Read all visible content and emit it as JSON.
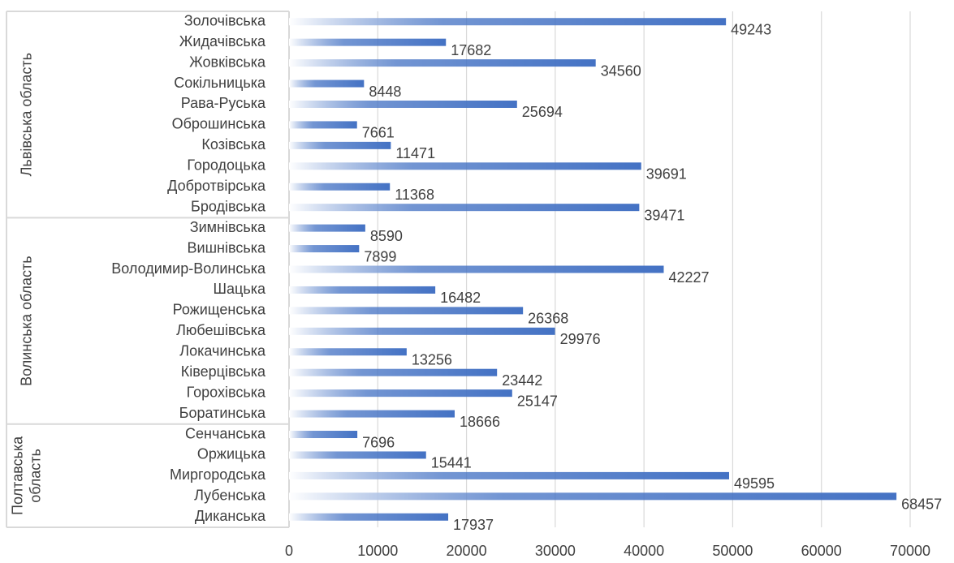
{
  "chart_data": {
    "type": "bar",
    "orientation": "horizontal",
    "xlim": [
      0,
      70000
    ],
    "xticks": [
      0,
      10000,
      20000,
      30000,
      40000,
      50000,
      60000,
      70000
    ],
    "grid": true,
    "bar_color": "#4472C4",
    "bar_style": "gradient-from-left",
    "groups": [
      {
        "label": "Львівська область",
        "label_lines": [
          "Львівська область"
        ],
        "items": [
          {
            "category": "Золочівська",
            "value": 49243
          },
          {
            "category": "Жидачівська",
            "value": 17682
          },
          {
            "category": "Жовківська",
            "value": 34560
          },
          {
            "category": "Сокільницька",
            "value": 8448
          },
          {
            "category": "Рава-Руська",
            "value": 25694
          },
          {
            "category": "Оброшинська",
            "value": 7661
          },
          {
            "category": "Козівська",
            "value": 11471
          },
          {
            "category": "Городоцька",
            "value": 39691
          },
          {
            "category": "Добротвірська",
            "value": 11368
          },
          {
            "category": "Бродівська",
            "value": 39471
          }
        ]
      },
      {
        "label": "Волинська область",
        "label_lines": [
          "Волинська область"
        ],
        "items": [
          {
            "category": "Зимнівська",
            "value": 8590
          },
          {
            "category": "Вишнівська",
            "value": 7899
          },
          {
            "category": "Володимир-Волинська",
            "value": 42227
          },
          {
            "category": "Шацька",
            "value": 16482
          },
          {
            "category": "Рожищенська",
            "value": 26368
          },
          {
            "category": "Любешівська",
            "value": 29976
          },
          {
            "category": "Локачинська",
            "value": 13256
          },
          {
            "category": "Ківерцівська",
            "value": 23442
          },
          {
            "category": "Горохівська",
            "value": 25147
          },
          {
            "category": "Боратинська",
            "value": 18666
          }
        ]
      },
      {
        "label": "Полтавська область",
        "label_lines": [
          "Полтавська",
          "область"
        ],
        "items": [
          {
            "category": "Сенчанська",
            "value": 7696
          },
          {
            "category": "Оржицька",
            "value": 15441
          },
          {
            "category": "Миргородська",
            "value": 49595
          },
          {
            "category": "Лубенська",
            "value": 68457
          },
          {
            "category": "Диканська",
            "value": 17937
          }
        ]
      }
    ]
  }
}
